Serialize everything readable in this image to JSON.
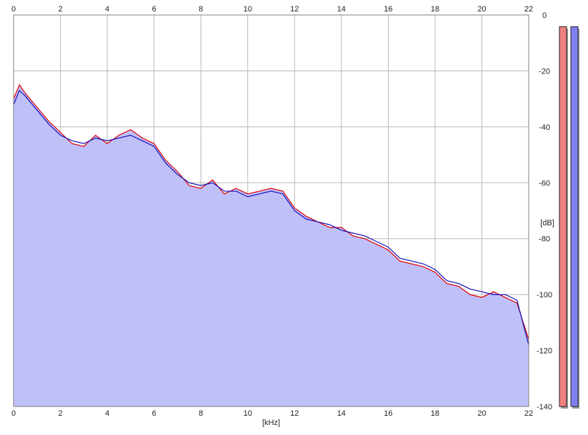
{
  "chart_data": {
    "type": "area",
    "xlabel": "[kHz]",
    "ylabel": "[dB]",
    "xlim": [
      0,
      22
    ],
    "ylim": [
      -140,
      0
    ],
    "x_ticks": [
      0,
      2,
      4,
      6,
      8,
      10,
      12,
      14,
      16,
      18,
      20,
      22
    ],
    "y_ticks": [
      0,
      -20,
      -40,
      -60,
      -80,
      -100,
      -120,
      -140
    ],
    "grid": true,
    "series": [
      {
        "color": "#e00000",
        "x": [
          0,
          0.25,
          0.5,
          1,
          1.5,
          2,
          2.5,
          3,
          3.5,
          4,
          4.5,
          5,
          5.5,
          6,
          6.5,
          7,
          7.5,
          8,
          8.5,
          9,
          9.5,
          10,
          10.5,
          11,
          11.5,
          12,
          12.5,
          13,
          13.5,
          14,
          14.5,
          15,
          15.5,
          16,
          16.5,
          17,
          17.5,
          18,
          18.5,
          19,
          19.5,
          20,
          20.5,
          21,
          21.5,
          22
        ],
        "values": [
          -30,
          -25,
          -28,
          -33,
          -38,
          -42,
          -46,
          -47,
          -43,
          -46,
          -43,
          -41,
          -44,
          -46,
          -52,
          -56,
          -61,
          -62,
          -59,
          -64,
          -62,
          -64,
          -63,
          -62,
          -63,
          -69,
          -72,
          -74,
          -76,
          -76,
          -79,
          -80,
          -82,
          -84,
          -88,
          -89,
          -90,
          -92,
          -96,
          -97,
          -100,
          -101,
          -99,
          -101,
          -103,
          -116
        ]
      },
      {
        "color": "#1010c0",
        "x": [
          0,
          0.25,
          0.5,
          1,
          1.5,
          2,
          2.5,
          3,
          3.5,
          4,
          4.5,
          5,
          5.5,
          6,
          6.5,
          7,
          7.5,
          8,
          8.5,
          9,
          9.5,
          10,
          10.5,
          11,
          11.5,
          12,
          12.5,
          13,
          13.5,
          14,
          14.5,
          15,
          15.5,
          16,
          16.5,
          17,
          17.5,
          18,
          18.5,
          19,
          19.5,
          20,
          20.5,
          21,
          21.5,
          22
        ],
        "values": [
          -32,
          -27,
          -29,
          -34,
          -39,
          -43,
          -45,
          -46,
          -44,
          -45,
          -44,
          -43,
          -45,
          -47,
          -53,
          -57,
          -60,
          -61,
          -60,
          -63,
          -63,
          -65,
          -64,
          -63,
          -64,
          -70,
          -73,
          -74,
          -75,
          -77,
          -78,
          -79,
          -81,
          -83,
          -87,
          -88,
          -89,
          -91,
          -95,
          -96,
          -98,
          -99,
          -100,
          -100,
          -102,
          -118
        ]
      }
    ],
    "level_meters": [
      {
        "color": "#f08080",
        "level": 0.97
      },
      {
        "color": "#8080f0",
        "level": 0.97
      }
    ]
  }
}
